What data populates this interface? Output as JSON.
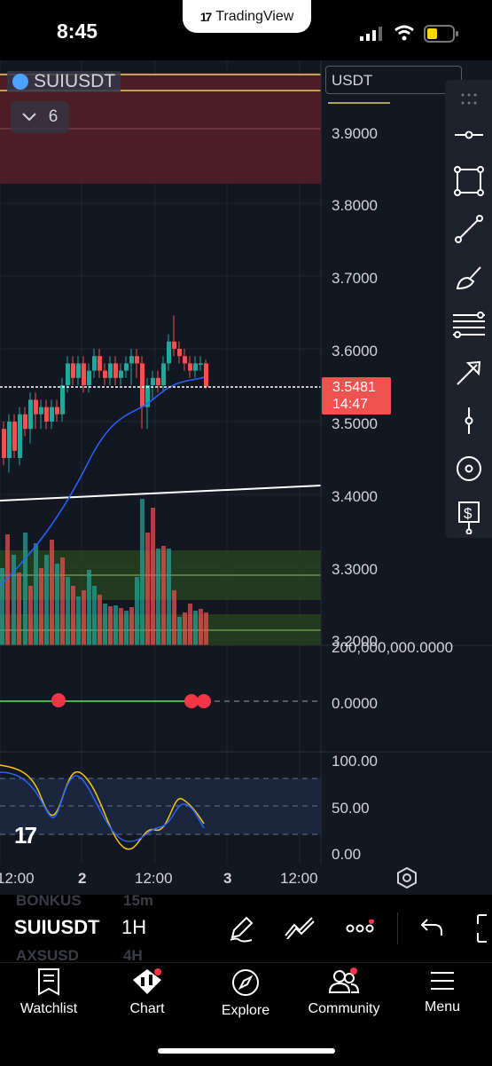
{
  "status_bar": {
    "time": "8:45",
    "app_name": "TradingView"
  },
  "chart": {
    "symbol": "SUIUSDT",
    "collapsed_indicators": "6",
    "currency": "USDT",
    "last_price": "3.5481",
    "countdown": "14:47",
    "price_axis": [
      "3.9000",
      "3.8000",
      "3.7000",
      "3.6000",
      "3.5000",
      "3.4000",
      "3.3000",
      "3.2000"
    ],
    "volume_axis": "200,000,000.0000",
    "osc1_axis": "0.0000",
    "osc2_axis": [
      "100.00",
      "50.00",
      "0.00"
    ],
    "time_axis": [
      "12:00",
      "2",
      "12:00",
      "3",
      "12:00"
    ],
    "colors": {
      "bg": "#131722",
      "up": "#26a69a",
      "down": "#ef5350",
      "ma": "#2962ff"
    }
  },
  "toolbar": {
    "tools": [
      "drag-handle-icon",
      "horizontal-line-icon",
      "rectangle-icon",
      "trend-line-icon",
      "brush-icon",
      "fib-levels-icon",
      "arrow-icon",
      "price-line-icon",
      "target-icon",
      "price-range-icon"
    ]
  },
  "symbol_bar": {
    "ghost_prev": "BONKUS",
    "ghost_prev_interval": "15m",
    "symbol": "SUIUSDT",
    "interval": "1H",
    "ghost_next": "AXSUSD",
    "ghost_next_interval": "4H"
  },
  "nav": [
    {
      "label": "Watchlist",
      "icon": "watchlist-icon"
    },
    {
      "label": "Chart",
      "icon": "chart-icon"
    },
    {
      "label": "Explore",
      "icon": "compass-icon"
    },
    {
      "label": "Community",
      "icon": "community-icon"
    },
    {
      "label": "Menu",
      "icon": "menu-icon"
    }
  ]
}
